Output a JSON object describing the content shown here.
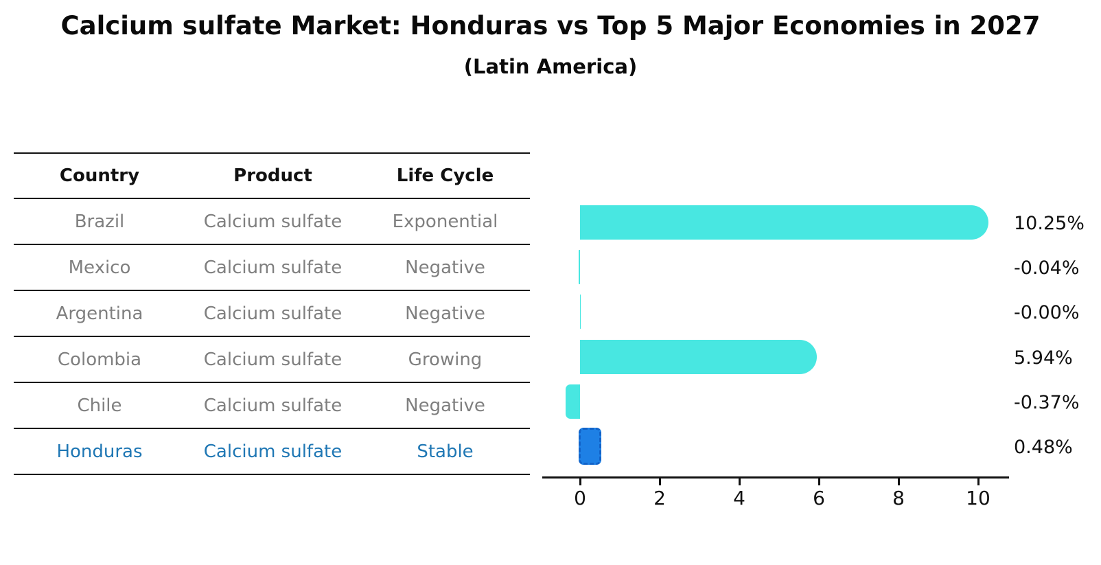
{
  "title": "Calcium sulfate Market: Honduras vs Top 5 Major Economies in 2027",
  "subtitle": "(Latin America)",
  "table": {
    "headers": [
      "Country",
      "Product",
      "Life Cycle"
    ],
    "rows": [
      {
        "country": "Brazil",
        "product": "Calcium sulfate",
        "life_cycle": "Exponential",
        "highlight": false
      },
      {
        "country": "Mexico",
        "product": "Calcium sulfate",
        "life_cycle": "Negative",
        "highlight": false
      },
      {
        "country": "Argentina",
        "product": "Calcium sulfate",
        "life_cycle": "Negative",
        "highlight": false
      },
      {
        "country": "Colombia",
        "product": "Calcium sulfate",
        "life_cycle": "Growing",
        "highlight": false
      },
      {
        "country": "Chile",
        "product": "Calcium sulfate",
        "life_cycle": "Negative",
        "highlight": false
      },
      {
        "country": "Honduras",
        "product": "Calcium sulfate",
        "life_cycle": "Stable",
        "highlight": true
      }
    ]
  },
  "chart_data": {
    "type": "bar",
    "orientation": "horizontal",
    "title": "Calcium sulfate Market: Honduras vs Top 5 Major Economies in 2027 (Latin America)",
    "categories": [
      "Brazil",
      "Mexico",
      "Argentina",
      "Colombia",
      "Chile",
      "Honduras"
    ],
    "values": [
      10.25,
      -0.04,
      -0.0,
      5.94,
      -0.37,
      0.48
    ],
    "value_labels": [
      "10.25%",
      "-0.04%",
      "-0.00%",
      "5.94%",
      "-0.37%",
      "0.48%"
    ],
    "x_ticks": [
      0,
      2,
      4,
      6,
      8,
      10
    ],
    "xlim": [
      -0.95,
      10.8
    ],
    "highlight_index": 5,
    "grid": false,
    "legend": false,
    "xlabel": "",
    "ylabel": ""
  },
  "colors": {
    "bar_fill": "#48E7E1",
    "highlight_fill": "#1E80E5",
    "highlight_border": "#1263C8",
    "highlight_text": "#1F77B4",
    "muted_text": "#7F7F7F",
    "ink": "#111111"
  }
}
